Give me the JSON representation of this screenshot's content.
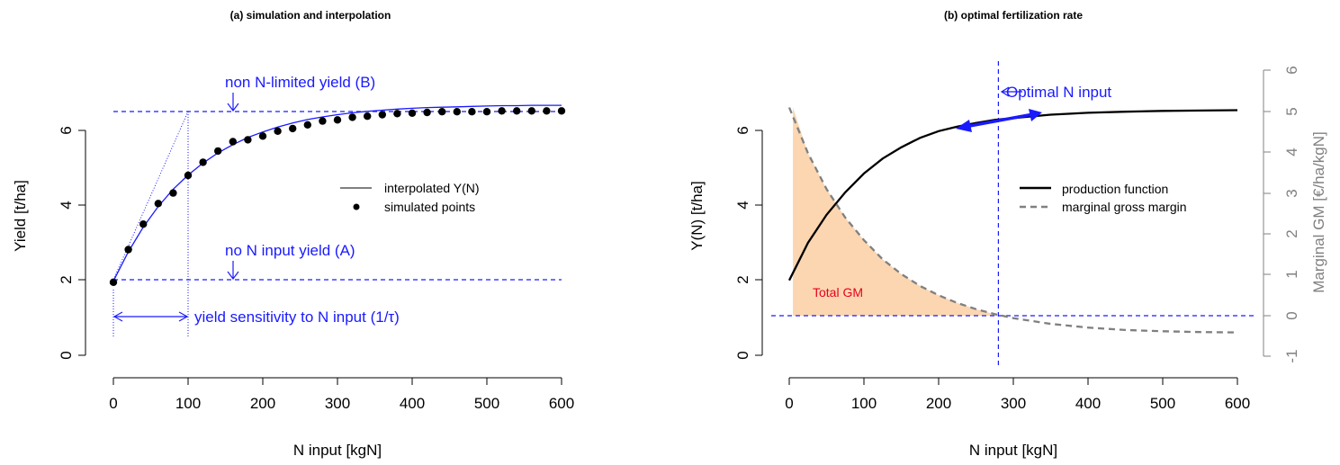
{
  "chart_data": [
    {
      "type": "scatter",
      "title": "(a) simulation and interpolation",
      "xlabel": "N input [kgN]",
      "ylabel": "Yield [t/ha]",
      "xlim": [
        0,
        600
      ],
      "ylim": [
        0,
        6.5
      ],
      "xticks": [
        "0",
        "100",
        "200",
        "300",
        "400",
        "500",
        "600"
      ],
      "yticks": [
        "0",
        "2",
        "4",
        "6"
      ],
      "series": [
        {
          "name": "interpolated Y(N)",
          "kind": "line",
          "color": "#1a1aff",
          "x": [
            0,
            20,
            40,
            60,
            80,
            100,
            120,
            140,
            160,
            180,
            200,
            220,
            240,
            260,
            280,
            300,
            320,
            340,
            360,
            380,
            400,
            420,
            440,
            460,
            480,
            500,
            520,
            540,
            560,
            580,
            600
          ],
          "y": [
            1.98,
            2.76,
            3.42,
            3.97,
            4.43,
            4.81,
            5.13,
            5.4,
            5.62,
            5.81,
            5.96,
            6.09,
            6.2,
            6.29,
            6.36,
            6.42,
            6.47,
            6.51,
            6.54,
            6.57,
            6.59,
            6.61,
            6.62,
            6.63,
            6.64,
            6.65,
            6.66,
            6.66,
            6.67,
            6.67,
            6.67
          ]
        },
        {
          "name": "simulated points",
          "kind": "points",
          "color": "#000000",
          "x": [
            0,
            20,
            40,
            60,
            80,
            100,
            120,
            140,
            160,
            180,
            200,
            220,
            240,
            260,
            280,
            300,
            320,
            340,
            360,
            380,
            400,
            420,
            440,
            460,
            480,
            500,
            520,
            540,
            560,
            580,
            600
          ],
          "y": [
            1.95,
            2.82,
            3.5,
            4.05,
            4.33,
            4.8,
            5.15,
            5.45,
            5.7,
            5.75,
            5.85,
            5.98,
            6.05,
            6.15,
            6.25,
            6.28,
            6.35,
            6.38,
            6.42,
            6.45,
            6.46,
            6.48,
            6.5,
            6.5,
            6.5,
            6.5,
            6.52,
            6.52,
            6.52,
            6.52,
            6.52
          ]
        }
      ],
      "reference_lines": {
        "A_yield": 2.0,
        "B_yield": 6.5,
        "tau": 100
      },
      "annotations": {
        "B": "non N-limited yield (B)",
        "A": "no N input yield (A)",
        "tau": "yield sensitivity to N input (1/τ)"
      },
      "legend": {
        "position": "right",
        "entries": [
          "interpolated Y(N)",
          "simulated points"
        ]
      }
    },
    {
      "type": "line",
      "title": "(b) optimal fertilization rate",
      "xlabel": "N input [kgN]",
      "ylabel": "Y(N) [t/ha]",
      "ylabel_right": "Marginal GM [€/ha/kgN]",
      "xlim": [
        0,
        600
      ],
      "ylim": [
        0,
        6.5
      ],
      "ylim_right": [
        -1,
        6
      ],
      "xticks": [
        "0",
        "100",
        "200",
        "300",
        "400",
        "500",
        "600"
      ],
      "yticks": [
        "0",
        "2",
        "4",
        "6"
      ],
      "yticks_right": [
        "-1",
        "0",
        "1",
        "2",
        "3",
        "4",
        "5",
        "6"
      ],
      "optimal_n": 280,
      "series": [
        {
          "name": "production function",
          "axis": "left",
          "color": "#000000",
          "x": [
            0,
            25,
            50,
            75,
            100,
            125,
            150,
            175,
            200,
            225,
            250,
            275,
            300,
            350,
            400,
            450,
            500,
            550,
            600
          ],
          "y": [
            2.0,
            3.0,
            3.75,
            4.35,
            4.85,
            5.25,
            5.55,
            5.8,
            5.98,
            6.1,
            6.2,
            6.28,
            6.33,
            6.42,
            6.47,
            6.5,
            6.52,
            6.53,
            6.54
          ]
        },
        {
          "name": "marginal gross margin",
          "axis": "right",
          "color": "#808080",
          "dashed": true,
          "x": [
            0,
            25,
            50,
            75,
            100,
            125,
            150,
            175,
            200,
            225,
            250,
            275,
            300,
            350,
            400,
            450,
            500,
            550,
            600
          ],
          "y": [
            5.1,
            3.98,
            3.1,
            2.4,
            1.85,
            1.38,
            1.02,
            0.73,
            0.5,
            0.31,
            0.16,
            0.04,
            -0.06,
            -0.2,
            -0.29,
            -0.35,
            -0.38,
            -0.4,
            -0.41
          ]
        }
      ],
      "annotations": {
        "optimal": "Optimal N input",
        "total_gm": "Total GM"
      },
      "legend": {
        "position": "right",
        "entries": [
          "production function",
          "marginal gross margin"
        ]
      }
    }
  ]
}
